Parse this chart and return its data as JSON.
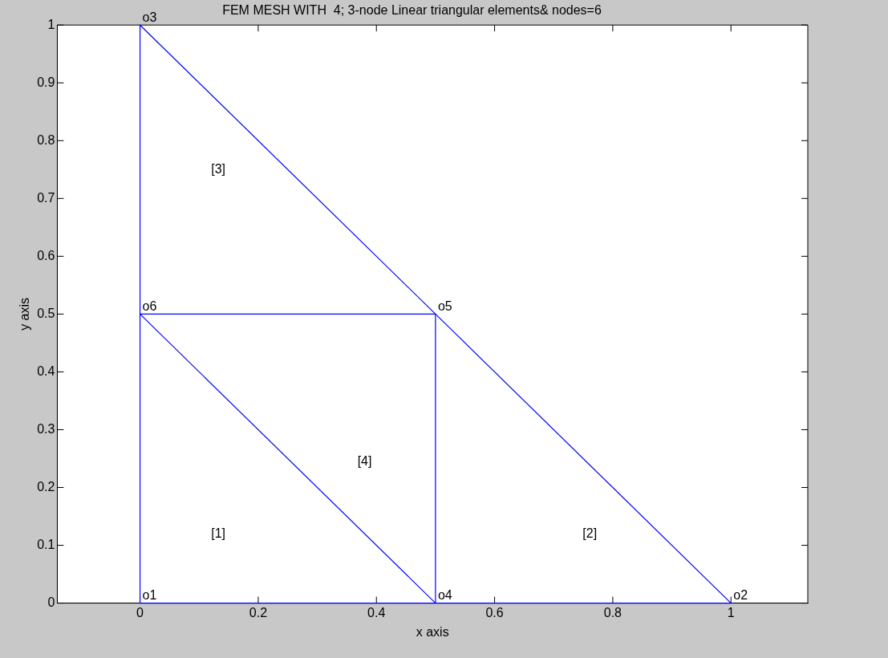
{
  "chart_data": {
    "type": "line",
    "title": "FEM MESH WITH  4; 3-node Linear triangular elements& nodes=6",
    "xlabel": "x axis",
    "ylabel": "y axis",
    "series": [
      {
        "color": "#0000ff",
        "x": [
          0,
          0,
          0,
          0.5,
          1
        ],
        "values": [
          1,
          0.5,
          0,
          0,
          0
        ]
      },
      {
        "color": "#0000ff",
        "x": [
          1,
          0.5,
          0
        ],
        "values": [
          0,
          0.5,
          1
        ]
      },
      {
        "color": "#0000ff",
        "x": [
          0,
          0.5,
          0.5
        ],
        "values": [
          0.5,
          0.5,
          0
        ]
      },
      {
        "color": "#0000ff",
        "x": [
          0.5,
          0
        ],
        "values": [
          0,
          0.5
        ]
      }
    ],
    "annotations": [
      {
        "text": "o1",
        "x": 0,
        "y": 0
      },
      {
        "text": "o2",
        "x": 1,
        "y": 0
      },
      {
        "text": "o3",
        "x": 0,
        "y": 1
      },
      {
        "text": "o4",
        "x": 0.5,
        "y": 0
      },
      {
        "text": "o5",
        "x": 0.5,
        "y": 0.5
      },
      {
        "text": "o6",
        "x": 0,
        "y": 0.5
      },
      "[1]",
      "[2]",
      "[3]",
      "[4]"
    ],
    "xlim": [
      -0.14,
      1.13
    ],
    "ylim": [
      0,
      1
    ],
    "xticks": [
      0,
      0.2,
      0.4,
      0.6,
      0.8,
      1
    ],
    "yticks": [
      0,
      0.1,
      0.2,
      0.3,
      0.4,
      0.5,
      0.6,
      0.7,
      0.8,
      0.9,
      1
    ],
    "grid": false,
    "legend": false,
    "marker": "none",
    "line_style": "solid"
  }
}
